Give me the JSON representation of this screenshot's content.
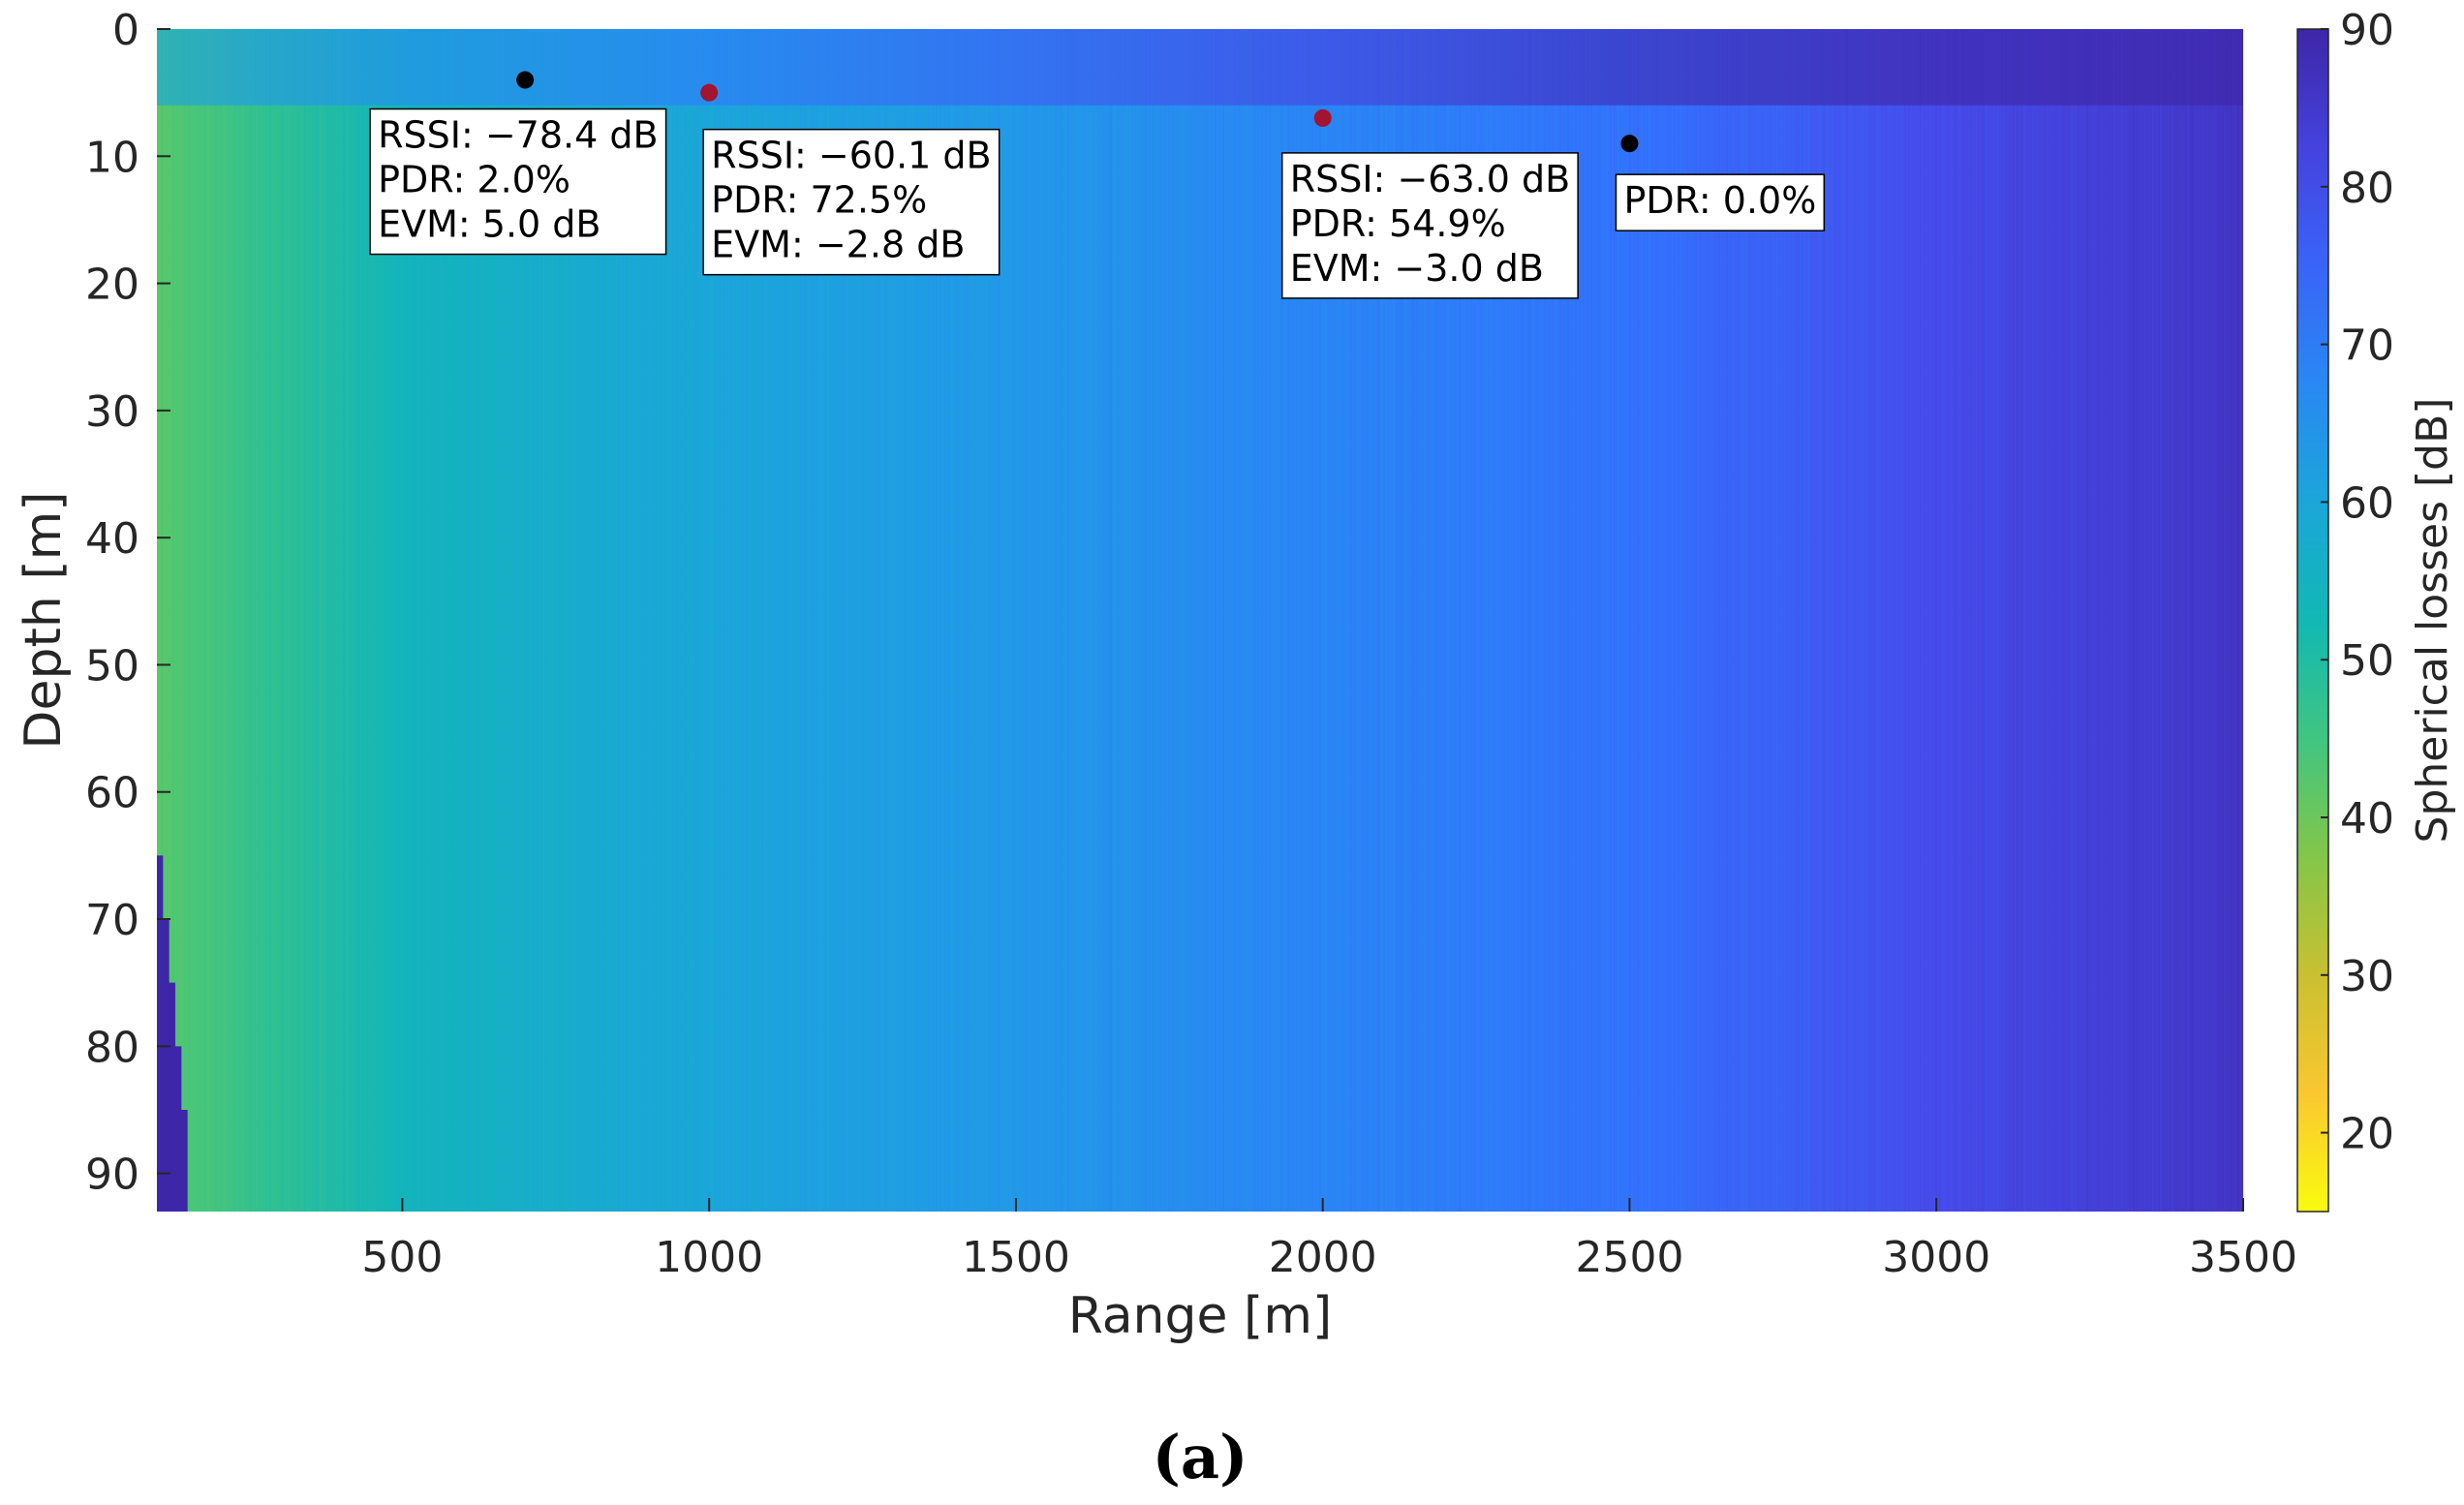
{
  "chart_data": {
    "type": "heatmap",
    "title": "",
    "xlabel": "Range [m]",
    "ylabel": "Depth [m]",
    "xlim": [
      100,
      3500
    ],
    "ylim": [
      93,
      0
    ],
    "y_reversed": true,
    "x_ticks": [
      500,
      1000,
      1500,
      2000,
      2500,
      3000,
      3500
    ],
    "y_ticks": [
      0,
      10,
      20,
      30,
      40,
      50,
      60,
      70,
      80,
      90
    ],
    "colorbar": {
      "label": "Spherical losses [dB]",
      "range": [
        15,
        90
      ],
      "ticks": [
        20,
        30,
        40,
        50,
        60,
        70,
        80,
        90
      ],
      "colormap": "parula"
    },
    "field_trend": {
      "range_m": [
        100,
        300,
        500,
        800,
        1000,
        1500,
        2000,
        2500,
        3000,
        3500
      ],
      "loss_db": [
        42,
        48,
        54,
        58,
        60,
        64,
        68,
        72,
        80,
        86
      ],
      "surface_loss_db": [
        60,
        64,
        66,
        68,
        70,
        76,
        82,
        88,
        90,
        90
      ]
    },
    "seabed_profile": {
      "range_m": [
        100,
        110,
        120,
        130,
        140,
        150
      ],
      "depth_m": [
        60,
        65,
        70,
        75,
        80,
        85
      ]
    },
    "points": [
      {
        "x": 700,
        "y": 4,
        "color": "#000000",
        "label_lines": [
          "RSSI: −78.4 dB",
          "PDR: 2.0%",
          "EVM: 5.0 dB"
        ]
      },
      {
        "x": 1000,
        "y": 5,
        "color": "#a2142f",
        "label_lines": [
          "RSSI: −60.1 dB",
          "PDR: 72.5%",
          "EVM: −2.8 dB"
        ]
      },
      {
        "x": 2000,
        "y": 7,
        "color": "#a2142f",
        "label_lines": [
          "RSSI: −63.0 dB",
          "PDR: 54.9%",
          "EVM: −3.0 dB"
        ]
      },
      {
        "x": 2500,
        "y": 9,
        "color": "#000000",
        "label_lines": [
          "PDR: 0.0%"
        ]
      }
    ]
  },
  "panel_label": "(a)"
}
